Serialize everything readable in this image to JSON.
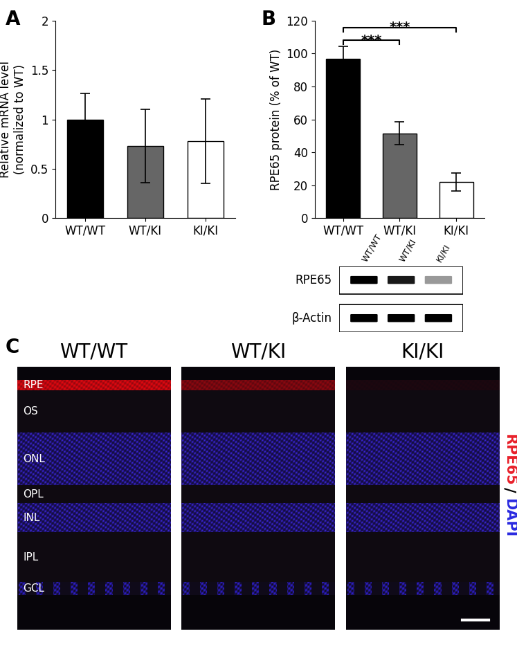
{
  "chart_data": [
    {
      "type": "bar",
      "panel_label": "A",
      "categories": [
        "WT/WT",
        "WT/KI",
        "KI/KI"
      ],
      "values": [
        1.0,
        0.73,
        0.78
      ],
      "errors": [
        0.26,
        0.37,
        0.43
      ],
      "colors": [
        "#000000",
        "#666666",
        "#ffffff"
      ],
      "ylabel": "Relative mRNA level\n(normalized to WT)",
      "ylim": [
        0,
        2
      ],
      "yticks": [
        0,
        0.5,
        1,
        1.5,
        2
      ]
    },
    {
      "type": "bar",
      "panel_label": "B",
      "categories": [
        "WT/WT",
        "WT/KI",
        "KI/KI"
      ],
      "values": [
        97,
        51.5,
        22
      ],
      "errors": [
        7.5,
        7,
        5.5
      ],
      "colors": [
        "#000000",
        "#666666",
        "#ffffff"
      ],
      "ylabel": "RPE65 protein (% of WT)",
      "ylim": [
        0,
        120
      ],
      "yticks": [
        0,
        20,
        40,
        60,
        80,
        100,
        120
      ],
      "annotations": [
        {
          "from": "WT/WT",
          "to": "WT/KI",
          "text": "***"
        },
        {
          "from": "WT/WT",
          "to": "KI/KI",
          "text": "***"
        }
      ]
    }
  ],
  "western_blot": {
    "lanes": [
      "WT/WT",
      "WT/KI",
      "KI/KI"
    ],
    "rows": [
      {
        "name": "RPE65",
        "band_strength": [
          1.0,
          0.9,
          0.4
        ]
      },
      {
        "name": "β-Actin",
        "band_strength": [
          1.0,
          1.0,
          1.0
        ]
      }
    ]
  },
  "immunofluorescence": {
    "panel_label": "C",
    "images": [
      {
        "title": "WT/WT",
        "rpe65_signal": 1.0
      },
      {
        "title": "WT/KI",
        "rpe65_signal": 0.6
      },
      {
        "title": "KI/KI",
        "rpe65_signal": 0.08
      }
    ],
    "layers": [
      "RPE",
      "OS",
      "ONL",
      "OPL",
      "INL",
      "IPL",
      "GCL"
    ],
    "stain_legend": [
      {
        "text": "RPE65",
        "color": "#e8202a"
      },
      {
        "text": "/",
        "color": "#000000"
      },
      {
        "text": "DAPI",
        "color": "#2a2ae0"
      }
    ]
  }
}
